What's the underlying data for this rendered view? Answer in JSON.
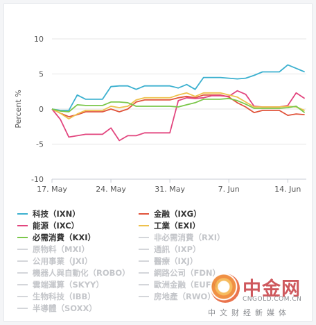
{
  "chart_data": {
    "type": "line",
    "title": "",
    "xlabel": "",
    "ylabel": "Percent %",
    "ylim": [
      -10,
      10
    ],
    "yticks": [
      -10,
      -5,
      0,
      5,
      10
    ],
    "xlim": [
      0,
      29
    ],
    "x_tick_labels": [
      {
        "x": 0,
        "label": "17. May"
      },
      {
        "x": 7,
        "label": "24. May"
      },
      {
        "x": 14,
        "label": "31. May"
      },
      {
        "x": 21,
        "label": "7. Jun"
      },
      {
        "x": 28,
        "label": "14. Jun"
      }
    ],
    "grid": true,
    "legend_position": "bottom",
    "series": [
      {
        "name": "科技（IXN）",
        "color": "#3bb0cf",
        "visible": true,
        "points": [
          [
            0,
            0
          ],
          [
            1,
            -0.2
          ],
          [
            2,
            -0.2
          ],
          [
            3,
            2
          ],
          [
            4,
            1.4
          ],
          [
            5,
            1.4
          ],
          [
            6,
            1.4
          ],
          [
            7,
            3.2
          ],
          [
            8,
            3.3
          ],
          [
            9,
            3.3
          ],
          [
            10,
            2.8
          ],
          [
            11,
            3.3
          ],
          [
            12,
            3.3
          ],
          [
            13,
            3.3
          ],
          [
            14,
            3.3
          ],
          [
            15,
            3
          ],
          [
            16,
            3.5
          ],
          [
            17,
            2.8
          ],
          [
            18,
            4.5
          ],
          [
            19,
            4.5
          ],
          [
            20,
            4.5
          ],
          [
            21,
            4.4
          ],
          [
            22,
            4.3
          ],
          [
            23,
            4.4
          ],
          [
            24,
            4.8
          ],
          [
            25,
            5.3
          ],
          [
            26,
            5.3
          ],
          [
            27,
            5.3
          ],
          [
            28,
            6.3
          ],
          [
            29,
            5.8
          ],
          [
            30,
            5.3
          ]
        ]
      },
      {
        "name": "金融（IXG）",
        "color": "#e0533a",
        "visible": true,
        "points": [
          [
            0,
            0
          ],
          [
            1,
            -0.6
          ],
          [
            2,
            -1.1
          ],
          [
            3,
            -0.8
          ],
          [
            4,
            -0.4
          ],
          [
            5,
            -0.4
          ],
          [
            6,
            -0.4
          ],
          [
            7,
            0
          ],
          [
            8,
            -0.4
          ],
          [
            9,
            0
          ],
          [
            10,
            1
          ],
          [
            11,
            1.3
          ],
          [
            12,
            1.3
          ],
          [
            13,
            1.3
          ],
          [
            14,
            1.3
          ],
          [
            15,
            1.6
          ],
          [
            16,
            1.8
          ],
          [
            17,
            1.6
          ],
          [
            18,
            2
          ],
          [
            19,
            2
          ],
          [
            20,
            2
          ],
          [
            21,
            1.7
          ],
          [
            22,
            0.9
          ],
          [
            23,
            0.3
          ],
          [
            24,
            -0.5
          ],
          [
            25,
            -0.2
          ],
          [
            26,
            -0.2
          ],
          [
            27,
            -0.2
          ],
          [
            28,
            -0.9
          ],
          [
            29,
            -0.7
          ],
          [
            30,
            -0.8
          ]
        ]
      },
      {
        "name": "能源（IXC）",
        "color": "#e2457e",
        "visible": true,
        "points": [
          [
            0,
            0
          ],
          [
            1,
            -1.5
          ],
          [
            2,
            -4
          ],
          [
            3,
            -3.8
          ],
          [
            4,
            -3.6
          ],
          [
            5,
            -3.6
          ],
          [
            6,
            -3.6
          ],
          [
            7,
            -2.7
          ],
          [
            8,
            -4.5
          ],
          [
            9,
            -3.8
          ],
          [
            10,
            -3.8
          ],
          [
            11,
            -3.4
          ],
          [
            12,
            -3.4
          ],
          [
            13,
            -3.4
          ],
          [
            14,
            -3.4
          ],
          [
            15,
            1.2
          ],
          [
            16,
            1.6
          ],
          [
            17,
            1.5
          ],
          [
            18,
            1.6
          ],
          [
            19,
            1.9
          ],
          [
            20,
            1.9
          ],
          [
            21,
            1.8
          ],
          [
            22,
            2.6
          ],
          [
            23,
            2.1
          ],
          [
            24,
            0.4
          ],
          [
            25,
            0.3
          ],
          [
            26,
            0.3
          ],
          [
            27,
            0.3
          ],
          [
            28,
            0.5
          ],
          [
            29,
            2.3
          ],
          [
            30,
            1.5
          ]
        ]
      },
      {
        "name": "工業（EXI）",
        "color": "#eec14d",
        "visible": true,
        "points": [
          [
            0,
            0
          ],
          [
            1,
            -0.6
          ],
          [
            2,
            -1.4
          ],
          [
            3,
            -0.7
          ],
          [
            4,
            -0.2
          ],
          [
            5,
            -0.2
          ],
          [
            6,
            -0.2
          ],
          [
            7,
            0.4
          ],
          [
            8,
            0.2
          ],
          [
            9,
            0.4
          ],
          [
            10,
            1.3
          ],
          [
            11,
            1.6
          ],
          [
            12,
            1.6
          ],
          [
            13,
            1.6
          ],
          [
            14,
            1.6
          ],
          [
            15,
            2
          ],
          [
            16,
            2.3
          ],
          [
            17,
            1.8
          ],
          [
            18,
            2.3
          ],
          [
            19,
            2.3
          ],
          [
            20,
            2.3
          ],
          [
            21,
            2
          ],
          [
            22,
            1.7
          ],
          [
            23,
            1
          ],
          [
            24,
            0.3
          ],
          [
            25,
            0.3
          ],
          [
            26,
            0.3
          ],
          [
            27,
            0.3
          ],
          [
            28,
            0.4
          ],
          [
            29,
            0.3
          ],
          [
            30,
            -0.2
          ]
        ]
      },
      {
        "name": "必需消費（KXI）",
        "color": "#7bc74a",
        "visible": true,
        "points": [
          [
            0,
            0
          ],
          [
            1,
            -0.3
          ],
          [
            2,
            -0.4
          ],
          [
            3,
            0.6
          ],
          [
            4,
            0.5
          ],
          [
            5,
            0.5
          ],
          [
            6,
            0.5
          ],
          [
            7,
            1
          ],
          [
            8,
            1
          ],
          [
            9,
            0.9
          ],
          [
            10,
            0.4
          ],
          [
            11,
            0.4
          ],
          [
            12,
            0.4
          ],
          [
            13,
            0.4
          ],
          [
            14,
            0.4
          ],
          [
            15,
            0.3
          ],
          [
            16,
            0.6
          ],
          [
            17,
            0.9
          ],
          [
            18,
            1.4
          ],
          [
            19,
            1.4
          ],
          [
            20,
            1.4
          ],
          [
            21,
            1.5
          ],
          [
            22,
            1.2
          ],
          [
            23,
            0.7
          ],
          [
            24,
            0.1
          ],
          [
            25,
            0.1
          ],
          [
            26,
            0.1
          ],
          [
            27,
            0.1
          ],
          [
            28,
            0.2
          ],
          [
            29,
            0.4
          ],
          [
            30,
            -0.5
          ]
        ]
      },
      {
        "name": "非必需消費（RXI）",
        "visible": false
      },
      {
        "name": "原物料（MXI）",
        "visible": false
      },
      {
        "name": "通訊（IXP）",
        "visible": false
      },
      {
        "name": "公用事業（JXI）",
        "visible": false
      },
      {
        "name": "醫療（IXJ）",
        "visible": false
      },
      {
        "name": "機器人與自動化（ROBO）",
        "visible": false
      },
      {
        "name": "網路公司（FDN）",
        "visible": false
      },
      {
        "name": "雲端運算（SKYY）",
        "visible": false
      },
      {
        "name": "歐洲金融（EUFN）",
        "visible": false
      },
      {
        "name": "生物科技（IBB）",
        "visible": false
      },
      {
        "name": "房地產（RWO）",
        "visible": false
      },
      {
        "name": "半導體（SOXX）",
        "visible": false
      }
    ]
  },
  "legend": {
    "visible_items": [
      "科技（IXN）",
      "金融（IXG）",
      "能源（IXC）",
      "工業（EXI）",
      "必需消費（KXI）"
    ],
    "inactive_items": [
      "非必需消費（RXI）",
      "原物料（MXI）",
      "通訊（IXP）",
      "公用事業（JXI）",
      "醫療（IXJ）",
      "機器人與自動化（ROBO）",
      "網路公司（FDN）",
      "雲端運算（SKYY）",
      "歐洲金融（EUFN）",
      "生物科技（IBB）",
      "房地產（RWO）",
      "半導體（SOXX）"
    ]
  },
  "watermark": {
    "name": "中金网",
    "url": "CNGOLD.COM.CN",
    "tagline": "中文财经新媒体",
    "logo_icon": "cngold-logo-icon"
  }
}
